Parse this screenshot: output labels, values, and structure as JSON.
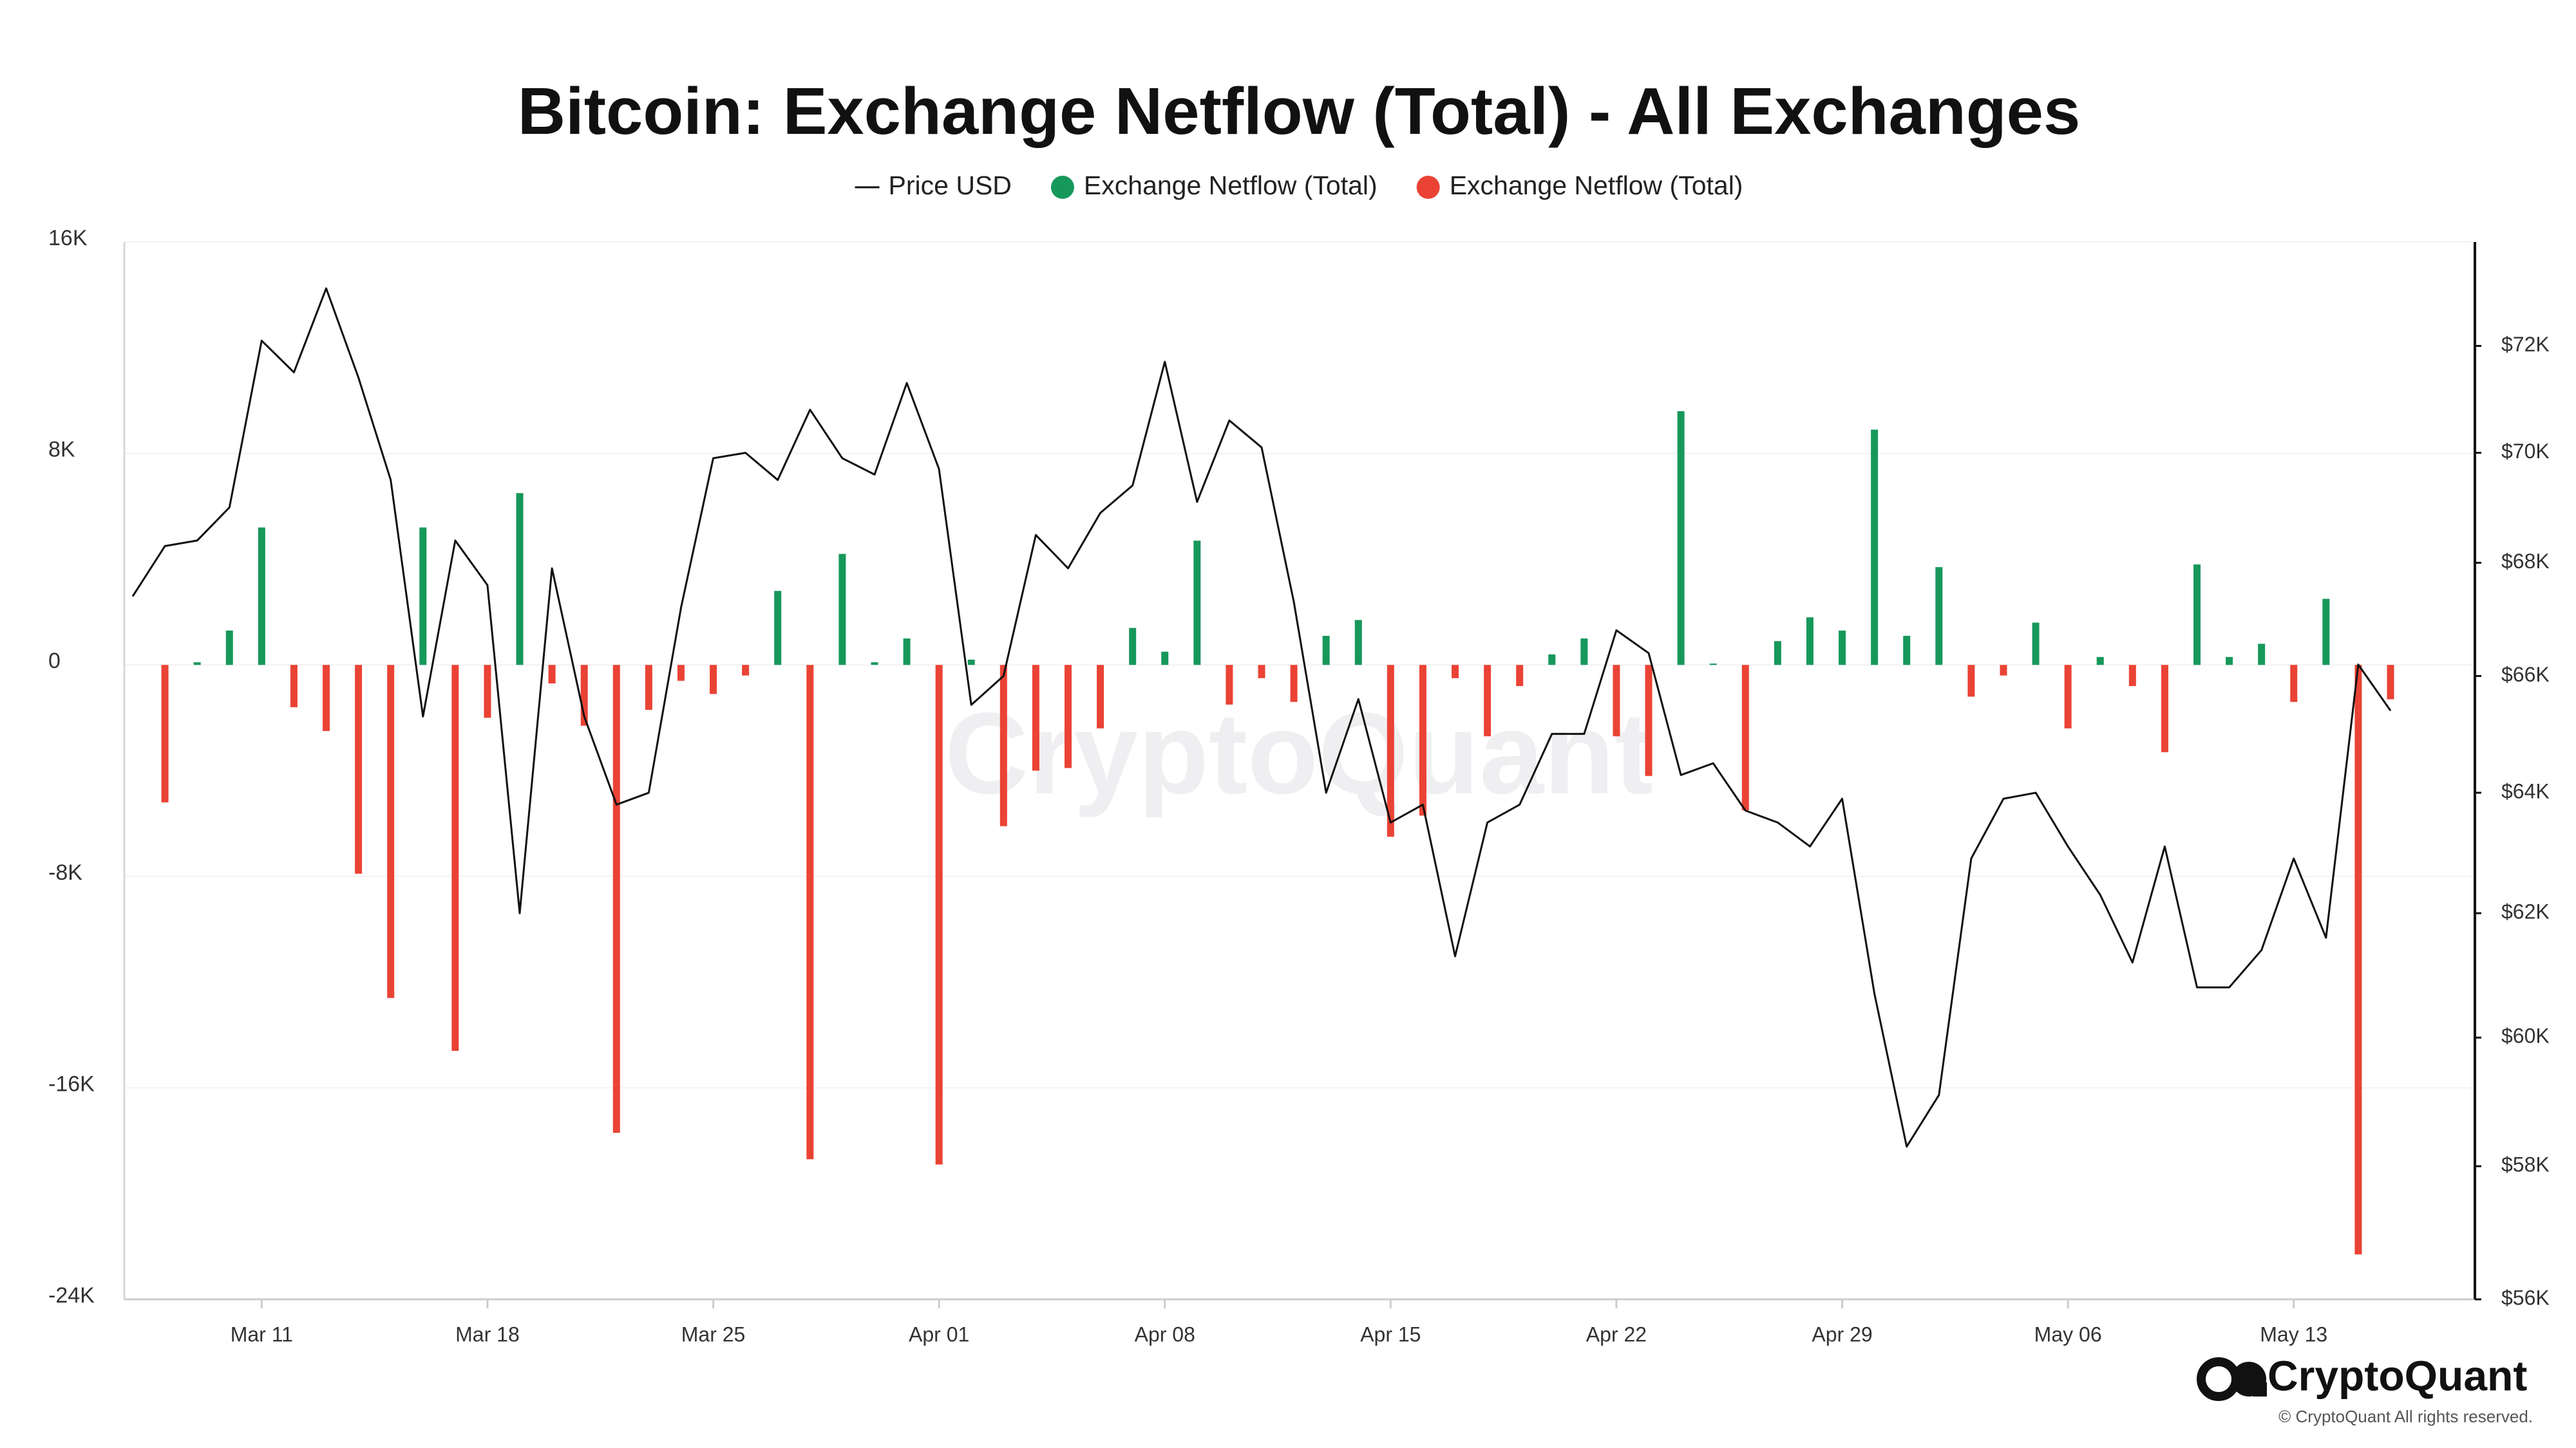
{
  "chart_data": {
    "type": "bar",
    "title": "Bitcoin: Exchange Netflow (Total) - All Exchanges",
    "watermark": "CryptoQuant",
    "categories": [
      null,
      null,
      null,
      null,
      "Mar 11",
      null,
      null,
      null,
      null,
      null,
      null,
      "Mar 18",
      null,
      null,
      null,
      null,
      null,
      null,
      "Mar 25",
      null,
      null,
      null,
      null,
      null,
      null,
      "Apr 01",
      null,
      null,
      null,
      null,
      null,
      null,
      "Apr 08",
      null,
      null,
      null,
      null,
      null,
      null,
      "Apr 15",
      null,
      null,
      null,
      null,
      null,
      null,
      "Apr 22",
      null,
      null,
      null,
      null,
      null,
      null,
      "Apr 29",
      null,
      null,
      null,
      null,
      null,
      null,
      "May 06",
      null,
      null,
      null,
      null,
      null,
      null,
      "May 13",
      null,
      null,
      null
    ],
    "ylim": [
      -24000,
      16000
    ],
    "yticks": [
      {
        "value": 16000,
        "label": "16K"
      },
      {
        "value": 8000,
        "label": "8K"
      },
      0,
      {
        "value": -8000,
        "label": "-8K"
      },
      {
        "value": -16000,
        "label": "-16K"
      },
      {
        "value": -24000,
        "label": "-24K"
      }
    ],
    "y2lim": [
      56000,
      74000
    ],
    "y2_scale": "log",
    "y2ticks": [
      {
        "value": 72000,
        "label": "$72K"
      },
      {
        "value": 70000,
        "label": "$70K"
      },
      {
        "value": 68000,
        "label": "$68K"
      },
      {
        "value": 66000,
        "label": "$66K"
      },
      {
        "value": 64000,
        "label": "$64K"
      },
      {
        "value": 62000,
        "label": "$62K"
      },
      {
        "value": 60000,
        "label": "$60K"
      },
      {
        "value": 58000,
        "label": "$58K"
      },
      {
        "value": 56000,
        "label": "$56K"
      }
    ],
    "grid": true,
    "series": [
      {
        "name": "Price USD",
        "type": "line",
        "axis": "y2",
        "color": "#111111",
        "values": [
          67400,
          68300,
          68400,
          69000,
          72100,
          71500,
          73100,
          71400,
          69500,
          65300,
          68400,
          67600,
          62000,
          67900,
          65300,
          63800,
          64000,
          67200,
          69900,
          70000,
          69500,
          70800,
          69900,
          69600,
          71300,
          69700,
          65500,
          66000,
          68500,
          67900,
          68900,
          69400,
          71700,
          69100,
          70600,
          70100,
          67300,
          64000,
          65600,
          63500,
          63800,
          61300,
          63500,
          63800,
          65000,
          65000,
          66800,
          66400,
          64300,
          64500,
          63700,
          63500,
          63100,
          63900,
          60700,
          58300,
          59100,
          62900,
          63900,
          64000,
          63100,
          62300,
          61200,
          63100,
          60800,
          60800,
          61400,
          62900,
          61600,
          66200,
          65400
        ]
      },
      {
        "name": "Exchange Netflow (Total)",
        "color": "#17985b",
        "values": [
          null,
          null,
          100,
          1300,
          5200,
          null,
          null,
          null,
          null,
          5200,
          null,
          null,
          6500,
          null,
          null,
          null,
          null,
          null,
          null,
          null,
          2800,
          null,
          4200,
          100,
          1000,
          null,
          200,
          null,
          null,
          null,
          null,
          1400,
          500,
          4700,
          null,
          null,
          null,
          1100,
          1700,
          null,
          null,
          null,
          null,
          null,
          400,
          1000,
          null,
          null,
          9600,
          50,
          null,
          900,
          1800,
          1300,
          8900,
          1100,
          3700,
          null,
          null,
          1600,
          null,
          300,
          null,
          null,
          3800,
          300,
          800,
          null,
          2500,
          null,
          null
        ]
      },
      {
        "name": "Exchange Netflow (Total)",
        "color": "#ea4335",
        "values": [
          null,
          -5200,
          null,
          null,
          null,
          -1600,
          -2500,
          -7900,
          -12600,
          null,
          -14600,
          -2000,
          null,
          -700,
          -2300,
          -17700,
          -1700,
          -600,
          -1100,
          -400,
          null,
          -18700,
          null,
          null,
          null,
          -18900,
          null,
          -6100,
          -4000,
          -3900,
          -2400,
          null,
          null,
          null,
          -1500,
          -500,
          -1400,
          null,
          null,
          -6500,
          -5700,
          -500,
          -2700,
          -800,
          null,
          null,
          -2700,
          -4200,
          null,
          null,
          -5500,
          null,
          null,
          null,
          null,
          null,
          null,
          -1200,
          -400,
          null,
          -2400,
          null,
          -800,
          -3300,
          null,
          null,
          null,
          -1400,
          null,
          -22300,
          -1300
        ]
      }
    ]
  },
  "branding": {
    "logo": "CryptoQuant",
    "copyright": "© CryptoQuant All rights reserved."
  }
}
